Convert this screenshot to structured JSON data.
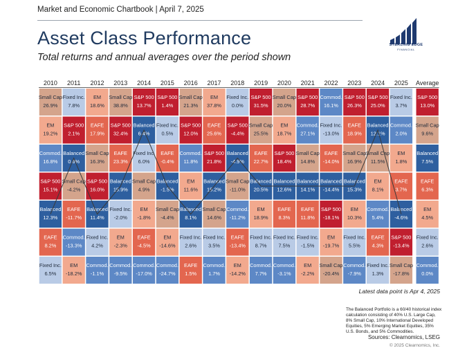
{
  "header": {
    "top_line": "Market and Economic Chartbook | April 7, 2025",
    "title": "Asset Class Performance",
    "subtitle": "Total returns and annual averages over the period shown"
  },
  "logo": {
    "name": "STERLING EDGE",
    "sub": "FINANCIAL",
    "icon": "bar-columns-logo"
  },
  "footer": {
    "data_point": "Latest data point is Apr 4, 2025",
    "balanced_note": "The Balanced Portfolio is a 60/40 historical index calculation consisting of 40% U.S. Large Cap, 8% Small Cap, 10% International Developed Equities, 5% Emerging Market Equities, 35% U.S. Bonds, and 5% Commodities.",
    "sources": "Sources: Clearnomics, LSEG",
    "copyright": "© 2025 Clearnomics, Inc."
  },
  "colors": {
    "S&P 500": "#c01f2f",
    "Small Cap": "#d4a48c",
    "EM": "#f2a98e",
    "EAFE": "#e3664f",
    "Commod.": "#5d88c6",
    "Fixed Inc.": "#b9cbe6",
    "Balanced": "#2e5f9f",
    "line": "#3a3a3a"
  },
  "chart_data": {
    "type": "table",
    "columns": [
      "2010",
      "2011",
      "2012",
      "2013",
      "2014",
      "2015",
      "2016",
      "2017",
      "2018",
      "2019",
      "2020",
      "2021",
      "2022",
      "2023",
      "2024",
      "2025",
      "Average"
    ],
    "rows": [
      [
        [
          "Small Cap",
          "26.9%"
        ],
        [
          "Fixed Inc.",
          "7.8%"
        ],
        [
          "EM",
          "18.6%"
        ],
        [
          "Small Cap",
          "38.8%"
        ],
        [
          "S&P 500",
          "13.7%"
        ],
        [
          "S&P 500",
          "1.4%"
        ],
        [
          "Small Cap",
          "21.3%"
        ],
        [
          "EM",
          "37.8%"
        ],
        [
          "Fixed Inc.",
          "0.0%"
        ],
        [
          "S&P 500",
          "31.5%"
        ],
        [
          "Small Cap",
          "20.0%"
        ],
        [
          "S&P 500",
          "28.7%"
        ],
        [
          "Commod.",
          "16.1%"
        ],
        [
          "S&P 500",
          "26.3%"
        ],
        [
          "S&P 500",
          "25.0%"
        ],
        [
          "Fixed Inc.",
          "3.7%"
        ],
        [
          "S&P 500",
          "13.0%"
        ]
      ],
      [
        [
          "EM",
          "19.2%"
        ],
        [
          "S&P 500",
          "2.1%"
        ],
        [
          "EAFE",
          "17.9%"
        ],
        [
          "S&P 500",
          "32.4%"
        ],
        [
          "Balanced",
          "6.4%"
        ],
        [
          "Fixed Inc.",
          "0.5%"
        ],
        [
          "S&P 500",
          "12.0%"
        ],
        [
          "EAFE",
          "25.6%"
        ],
        [
          "S&P 500",
          "-4.4%"
        ],
        [
          "Small Cap",
          "25.5%"
        ],
        [
          "EM",
          "18.7%"
        ],
        [
          "Commod.",
          "27.1%"
        ],
        [
          "Fixed Inc.",
          "-13.0%"
        ],
        [
          "EAFE",
          "18.9%"
        ],
        [
          "Balanced",
          "12.1%"
        ],
        [
          "Commod.",
          "2.0%"
        ],
        [
          "Small Cap",
          "9.6%"
        ]
      ],
      [
        [
          "Commod.",
          "16.8%"
        ],
        [
          "Balanced",
          "0.6%"
        ],
        [
          "Small Cap",
          "16.3%"
        ],
        [
          "EAFE",
          "23.3%"
        ],
        [
          "Fixed Inc.",
          "6.0%"
        ],
        [
          "EAFE",
          "-0.4%"
        ],
        [
          "Commod.",
          "11.8%"
        ],
        [
          "S&P 500",
          "21.8%"
        ],
        [
          "Balanced",
          "-4.9%"
        ],
        [
          "EAFE",
          "22.7%"
        ],
        [
          "S&P 500",
          "18.4%"
        ],
        [
          "Small Cap",
          "14.8%"
        ],
        [
          "EAFE",
          "-14.0%"
        ],
        [
          "Small Cap",
          "16.9%"
        ],
        [
          "Small Cap",
          "11.5%"
        ],
        [
          "EM",
          "1.8%"
        ],
        [
          "Balanced",
          "7.5%"
        ]
      ],
      [
        [
          "S&P 500",
          "15.1%"
        ],
        [
          "Small Cap",
          "-4.2%"
        ],
        [
          "S&P 500",
          "16.0%"
        ],
        [
          "Balanced",
          "15.9%"
        ],
        [
          "Small Cap",
          "4.9%"
        ],
        [
          "Balanced",
          "-1.5%"
        ],
        [
          "EM",
          "11.6%"
        ],
        [
          "Balanced",
          "15.2%"
        ],
        [
          "Small Cap",
          "-11.0%"
        ],
        [
          "Balanced",
          "20.5%"
        ],
        [
          "Balanced",
          "12.6%"
        ],
        [
          "Balanced",
          "14.1%"
        ],
        [
          "Balanced",
          "-14.4%"
        ],
        [
          "Balanced",
          "15.3%"
        ],
        [
          "EM",
          "8.1%"
        ],
        [
          "EAFE",
          "3.7%"
        ],
        [
          "EAFE",
          "6.3%"
        ]
      ],
      [
        [
          "Balanced",
          "12.3%"
        ],
        [
          "EAFE",
          "-11.7%"
        ],
        [
          "Balanced",
          "11.4%"
        ],
        [
          "Fixed Inc.",
          "-2.0%"
        ],
        [
          "EM",
          "-1.8%"
        ],
        [
          "Small Cap",
          "-4.4%"
        ],
        [
          "Balanced",
          "8.1%"
        ],
        [
          "Small Cap",
          "14.6%"
        ],
        [
          "Commod.",
          "-11.2%"
        ],
        [
          "EM",
          "18.9%"
        ],
        [
          "EAFE",
          "8.3%"
        ],
        [
          "EAFE",
          "11.8%"
        ],
        [
          "S&P 500",
          "-18.1%"
        ],
        [
          "EM",
          "10.3%"
        ],
        [
          "Commod.",
          "5.4%"
        ],
        [
          "Balanced",
          "-4.6%"
        ],
        [
          "EM",
          "4.5%"
        ]
      ],
      [
        [
          "EAFE",
          "8.2%"
        ],
        [
          "Commod.",
          "-13.3%"
        ],
        [
          "Fixed Inc.",
          "4.2%"
        ],
        [
          "EM",
          "-2.3%"
        ],
        [
          "EAFE",
          "-4.5%"
        ],
        [
          "EM",
          "-14.6%"
        ],
        [
          "Fixed Inc.",
          "2.6%"
        ],
        [
          "Fixed Inc.",
          "3.5%"
        ],
        [
          "EAFE",
          "-13.4%"
        ],
        [
          "Fixed Inc.",
          "8.7%"
        ],
        [
          "Fixed Inc.",
          "7.5%"
        ],
        [
          "Fixed Inc.",
          "-1.5%"
        ],
        [
          "EM",
          "-19.7%"
        ],
        [
          "Fixed Inc.",
          "5.5%"
        ],
        [
          "EAFE",
          "4.3%"
        ],
        [
          "S&P 500",
          "-13.4%"
        ],
        [
          "Fixed Inc.",
          "2.6%"
        ]
      ],
      [
        [
          "Fixed Inc.",
          "6.5%"
        ],
        [
          "EM",
          "-18.2%"
        ],
        [
          "Commod.",
          "-1.1%"
        ],
        [
          "Commod.",
          "-9.5%"
        ],
        [
          "Commod.",
          "-17.0%"
        ],
        [
          "Commod.",
          "-24.7%"
        ],
        [
          "EAFE",
          "1.5%"
        ],
        [
          "Commod.",
          "1.7%"
        ],
        [
          "EM",
          "-14.2%"
        ],
        [
          "Commod.",
          "7.7%"
        ],
        [
          "Commod.",
          "-3.1%"
        ],
        [
          "EM",
          "-2.2%"
        ],
        [
          "Small Cap",
          "-20.4%"
        ],
        [
          "Commod.",
          "-7.9%"
        ],
        [
          "Fixed Inc.",
          "1.3%"
        ],
        [
          "Small Cap",
          "-17.8%"
        ],
        [
          "Commod.",
          "0.0%"
        ]
      ]
    ],
    "highlighted_series": "Balanced"
  }
}
